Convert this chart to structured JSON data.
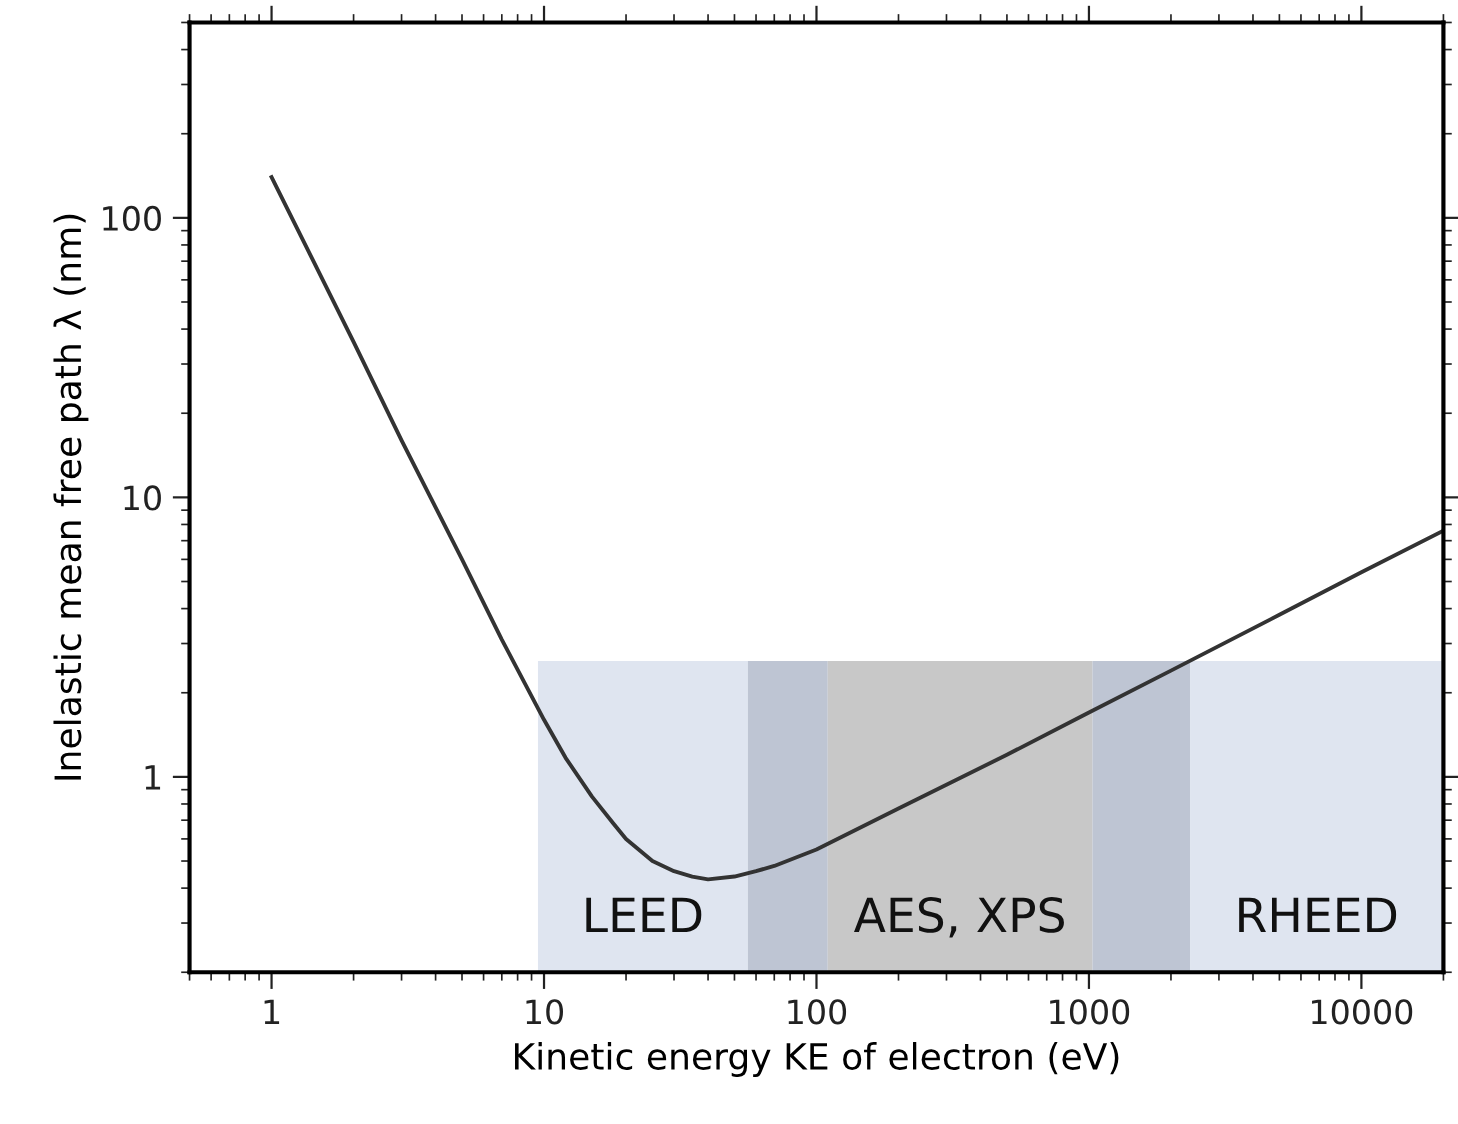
{
  "chart_data": {
    "type": "line",
    "xlabel": "Kinetic energy KE of electron (eV)",
    "ylabel": "Inelastic mean free path λ (nm)",
    "log": "xy",
    "grid": false,
    "xlim": [
      0.5,
      20000
    ],
    "ylim": [
      0.2,
      500
    ],
    "xticks": [
      1,
      10,
      100,
      1000,
      10000
    ],
    "yticks": [
      1,
      10,
      100
    ],
    "series": [
      {
        "type": "area",
        "name": "LEED",
        "color": "#dfe5f0",
        "x": [
          9.5,
          56
        ],
        "values": [
          2.6,
          2.6
        ]
      },
      {
        "type": "area",
        "color": "#bec5d3",
        "x": [
          56,
          110
        ],
        "values": [
          2.6,
          2.6
        ]
      },
      {
        "type": "area",
        "name": "AES, XPS",
        "color": "#c8c8c8",
        "x": [
          110,
          1030
        ],
        "values": [
          2.6,
          2.6
        ]
      },
      {
        "type": "area",
        "color": "#bec5d3",
        "x": [
          1030,
          2350
        ],
        "values": [
          2.6,
          2.6
        ]
      },
      {
        "type": "area",
        "name": "RHEED",
        "color": "#dfe5f0",
        "x": [
          2350,
          20000
        ],
        "values": [
          2.6,
          2.6
        ]
      },
      {
        "color": "#333333",
        "x": [
          1,
          2,
          3,
          5,
          7,
          10,
          12,
          15,
          18,
          20,
          25,
          30,
          35,
          40,
          50,
          60,
          70,
          100,
          200,
          500,
          1000,
          2000,
          5000,
          10000,
          20000
        ],
        "values": [
          140,
          36,
          16,
          6,
          3.1,
          1.6,
          1.17,
          0.85,
          0.68,
          0.6,
          0.5,
          0.46,
          0.44,
          0.43,
          0.44,
          0.46,
          0.48,
          0.55,
          0.77,
          1.2,
          1.7,
          2.4,
          3.8,
          5.4,
          7.6
        ]
      }
    ]
  }
}
